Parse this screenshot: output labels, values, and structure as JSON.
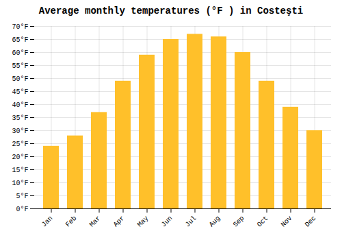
{
  "chart_data": {
    "type": "bar",
    "title": "Average monthly temperatures (°F ) in Costeşti",
    "categories": [
      "Jan",
      "Feb",
      "Mar",
      "Apr",
      "May",
      "Jun",
      "Jul",
      "Aug",
      "Sep",
      "Oct",
      "Nov",
      "Dec"
    ],
    "values": [
      24,
      28,
      37,
      49,
      59,
      65,
      67,
      66,
      60,
      49,
      39,
      30
    ],
    "color": "#FFC02A",
    "ylim": [
      0,
      70
    ],
    "yticks": [
      {
        "value": 0,
        "label": "0°F"
      },
      {
        "value": 5,
        "label": "5°F"
      },
      {
        "value": 10,
        "label": "10°F"
      },
      {
        "value": 15,
        "label": "15°F"
      },
      {
        "value": 20,
        "label": "20°F"
      },
      {
        "value": 25,
        "label": "25°F"
      },
      {
        "value": 30,
        "label": "30°F"
      },
      {
        "value": 35,
        "label": "35°F"
      },
      {
        "value": 40,
        "label": "40°F"
      },
      {
        "value": 45,
        "label": "45°F"
      },
      {
        "value": 50,
        "label": "50°F"
      },
      {
        "value": 55,
        "label": "55°F"
      },
      {
        "value": 60,
        "label": "60°F"
      },
      {
        "value": 65,
        "label": "65°F"
      },
      {
        "value": 70,
        "label": "70°F"
      }
    ],
    "grid": true
  }
}
